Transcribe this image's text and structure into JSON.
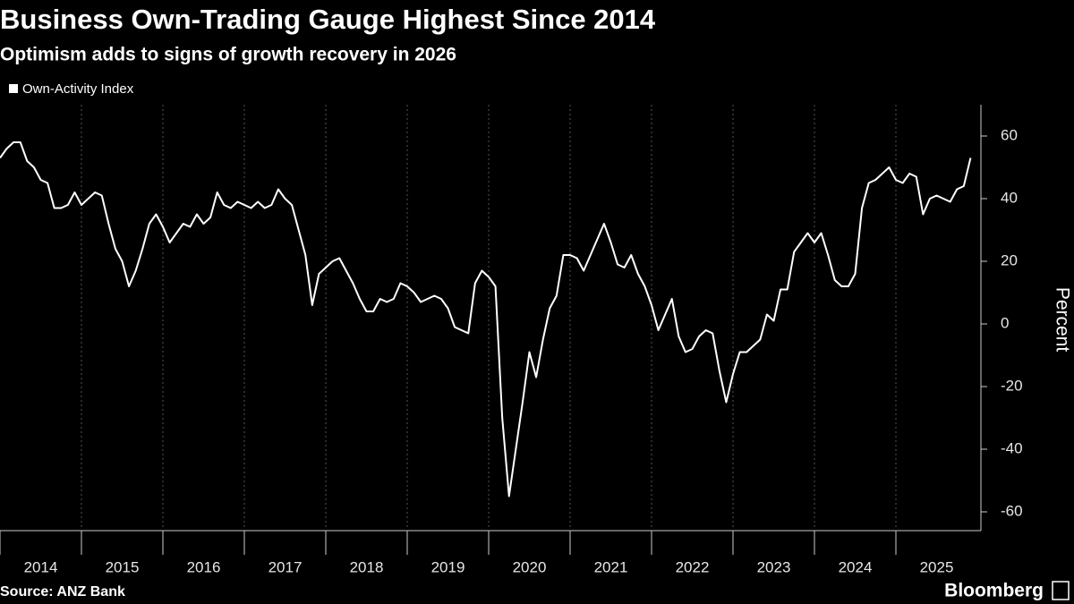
{
  "chart_data": {
    "type": "line",
    "title": "Business Own-Trading Gauge Highest Since 2014",
    "subtitle": "Optimism adds to signs of growth recovery in 2026",
    "y_label": "Percent",
    "source": "Source: ANZ Bank",
    "brand": "Bloomberg",
    "categories": [
      "2014",
      null,
      null,
      null,
      null,
      null,
      null,
      null,
      null,
      null,
      null,
      null,
      "2015",
      null,
      null,
      null,
      null,
      null,
      null,
      null,
      null,
      null,
      null,
      null,
      "2016",
      null,
      null,
      null,
      null,
      null,
      null,
      null,
      null,
      null,
      null,
      null,
      "2017",
      null,
      null,
      null,
      null,
      null,
      null,
      null,
      null,
      null,
      null,
      null,
      "2018",
      null,
      null,
      null,
      null,
      null,
      null,
      null,
      null,
      null,
      null,
      null,
      "2019",
      null,
      null,
      null,
      null,
      null,
      null,
      null,
      null,
      null,
      null,
      null,
      "2020",
      null,
      null,
      null,
      null,
      null,
      null,
      null,
      null,
      null,
      null,
      null,
      "2021",
      null,
      null,
      null,
      null,
      null,
      null,
      null,
      null,
      null,
      null,
      null,
      "2022",
      null,
      null,
      null,
      null,
      null,
      null,
      null,
      null,
      null,
      null,
      null,
      "2023",
      null,
      null,
      null,
      null,
      null,
      null,
      null,
      null,
      null,
      null,
      null,
      "2024",
      null,
      null,
      null,
      null,
      null,
      null,
      null,
      null,
      null,
      null,
      null,
      "2025",
      null,
      null,
      null,
      null,
      null,
      null,
      null,
      null,
      null,
      null,
      null
    ],
    "series": [
      {
        "name": "Own-Activity Index",
        "color": "#ffffff",
        "values": [
          53,
          56,
          58,
          58,
          52,
          50,
          46,
          45,
          37,
          37,
          38,
          42,
          38,
          40,
          42,
          41,
          32,
          24,
          20,
          12,
          17,
          24,
          32,
          35,
          31,
          26,
          29,
          32,
          31,
          35,
          32,
          34,
          42,
          38,
          37,
          39,
          38,
          37,
          39,
          37,
          38,
          43,
          40,
          38,
          30,
          22,
          6,
          16,
          18,
          20,
          21,
          17,
          13,
          8,
          4,
          4,
          8,
          7,
          8,
          13,
          12,
          10,
          7,
          8,
          9,
          8,
          5,
          -1,
          -2,
          -3,
          13,
          17,
          15,
          12,
          -30,
          -55,
          -40,
          -25,
          -9,
          -17,
          -5,
          5,
          9,
          22,
          22,
          21,
          17,
          22,
          27,
          32,
          26,
          19,
          18,
          22,
          16,
          12,
          6,
          -2,
          3,
          8,
          -4,
          -9,
          -8,
          -4,
          -2,
          -3,
          -15,
          -25,
          -16,
          -9,
          -9,
          -7,
          -5,
          3,
          1,
          11,
          11,
          23,
          26,
          29,
          26,
          29,
          22,
          14,
          12,
          12,
          16,
          37,
          45,
          46,
          48,
          50,
          46,
          45,
          48,
          47,
          35,
          40,
          41,
          40,
          39,
          43,
          44,
          53
        ]
      }
    ],
    "ylim": [
      -66,
      70
    ],
    "yticks": [
      -60,
      -40,
      -20,
      0,
      20,
      40,
      60
    ],
    "legend": "top-left"
  }
}
